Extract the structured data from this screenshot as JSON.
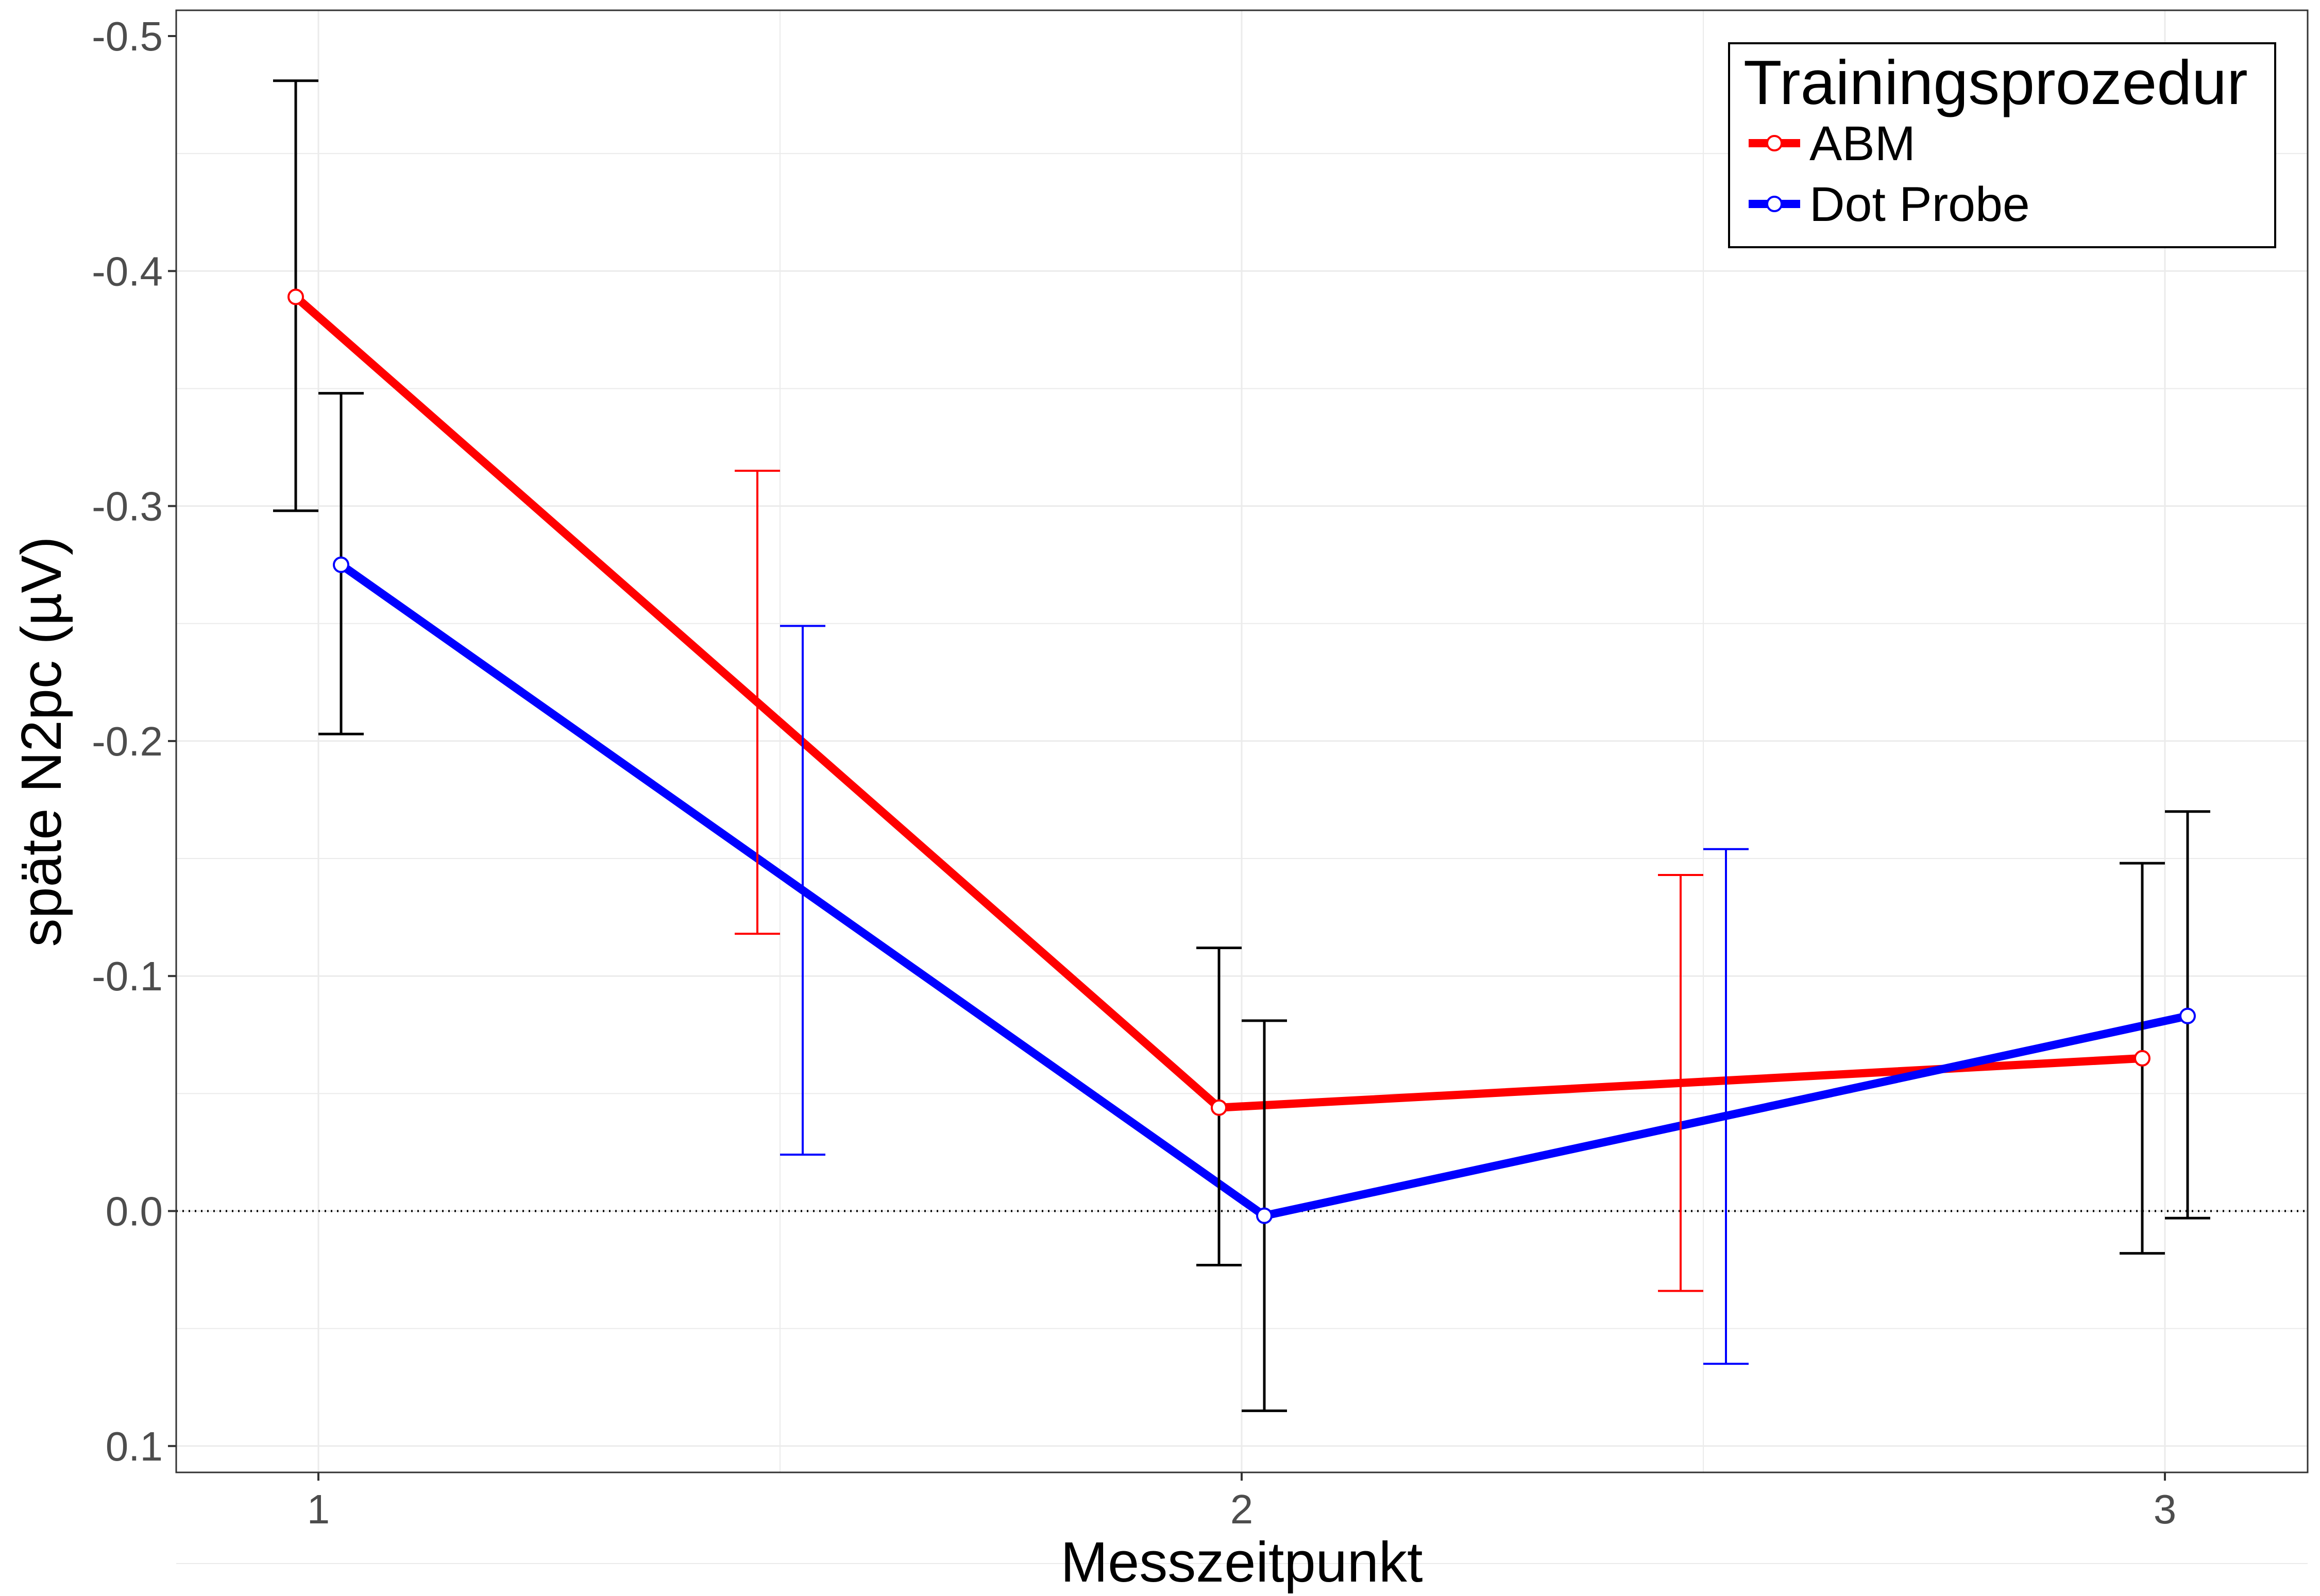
{
  "chart_data": {
    "type": "line",
    "xlabel": "Messzeitpunkt",
    "ylabel": "späte N2pc (µV)",
    "x_categories": [
      "1",
      "2",
      "3"
    ],
    "y_ticks": [
      "-0.5",
      "-0.4",
      "-0.3",
      "-0.2",
      "-0.1",
      "0.0",
      "0.1"
    ],
    "y_reversed": true,
    "ylim": [
      -0.5,
      0.1
    ],
    "reference_line": {
      "y": 0,
      "style": "dotted"
    },
    "legend": {
      "title": "Trainingsprozedur",
      "position": "top-right"
    },
    "series": [
      {
        "name": "ABM",
        "color": "#ff0000",
        "points": [
          {
            "x": 1,
            "y": -0.389,
            "ci": [
              -0.481,
              -0.298
            ]
          },
          {
            "x": 2,
            "y": -0.044,
            "ci": [
              -0.112,
              0.023
            ]
          },
          {
            "x": 3,
            "y": -0.065,
            "ci": [
              -0.148,
              0.018
            ]
          }
        ]
      },
      {
        "name": "Dot Probe",
        "color": "#0000ff",
        "points": [
          {
            "x": 1,
            "y": -0.275,
            "ci": [
              -0.348,
              -0.203
            ]
          },
          {
            "x": 2,
            "y": 0.002,
            "ci": [
              -0.081,
              0.085
            ]
          },
          {
            "x": 3,
            "y": -0.083,
            "ci": [
              -0.17,
              0.003
            ]
          }
        ]
      }
    ],
    "difference_error_bars": [
      {
        "between": "1-2",
        "series": "ABM",
        "range": [
          -0.315,
          -0.118
        ],
        "color": "#ff0000"
      },
      {
        "between": "1-2",
        "series": "Dot Probe",
        "range": [
          -0.249,
          -0.024
        ],
        "color": "#0000ff"
      },
      {
        "between": "2-3",
        "series": "ABM",
        "range": [
          -0.143,
          0.034
        ],
        "color": "#ff0000"
      },
      {
        "between": "2-3",
        "series": "Dot Probe",
        "range": [
          -0.154,
          0.065
        ],
        "color": "#0000ff"
      }
    ],
    "grid": true
  }
}
